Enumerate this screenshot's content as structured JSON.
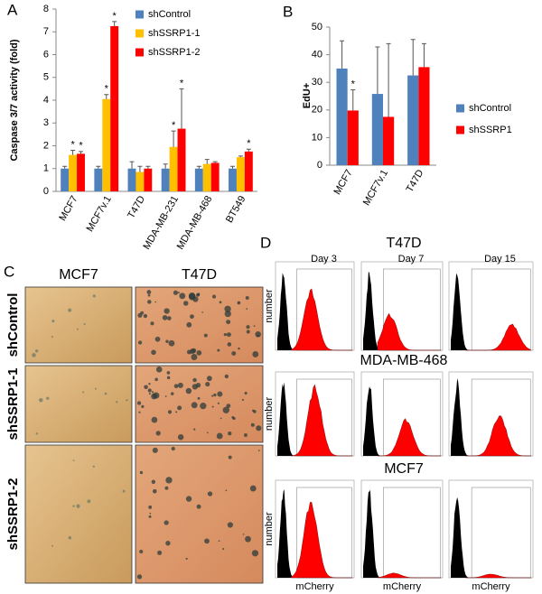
{
  "panel_labels": [
    "A",
    "B",
    "C",
    "D"
  ],
  "chart_data": [
    {
      "type": "bar",
      "ylabel": "Caspase 3/7 activity (fold)",
      "categories": [
        "MCF7",
        "MCF7v.1",
        "T47D",
        "MDA-MB-231",
        "MDA-MB-468",
        "BT549"
      ],
      "series": [
        {
          "name": "shControl",
          "color": "#4f81bd",
          "values": [
            1.0,
            1.0,
            1.0,
            1.0,
            1.0,
            1.0
          ],
          "errors": [
            0.1,
            0.1,
            0.3,
            0.2,
            0.1,
            0.1
          ],
          "annotations": [
            null,
            null,
            null,
            null,
            null,
            null
          ]
        },
        {
          "name": "shSSRP1-1",
          "color": "#ffc000",
          "values": [
            1.6,
            4.05,
            0.85,
            1.95,
            1.2,
            1.5
          ],
          "errors": [
            0.2,
            0.2,
            0.25,
            0.7,
            0.2,
            0.05
          ],
          "annotations": [
            "*",
            "*",
            null,
            "*",
            null,
            null
          ]
        },
        {
          "name": "shSSRP1-2",
          "color": "#ff0000",
          "values": [
            1.65,
            7.25,
            1.0,
            2.75,
            1.25,
            1.75
          ],
          "errors": [
            0.1,
            0.2,
            0.1,
            1.75,
            0.05,
            0.1
          ],
          "annotations": [
            "*",
            "*",
            null,
            "*",
            null,
            "*"
          ]
        }
      ],
      "ylim": [
        0,
        8
      ],
      "yticks": [
        0,
        1,
        2,
        3,
        4,
        5,
        6,
        7,
        8
      ],
      "grid": false
    },
    {
      "type": "bar",
      "ylabel": "EdU+",
      "categories": [
        "MCF7",
        "MCF7v.1",
        "T47D"
      ],
      "series": [
        {
          "name": "shControl",
          "color": "#4f81bd",
          "values": [
            35,
            25.8,
            32.5
          ],
          "errors": [
            10,
            17,
            13
          ],
          "annotations": [
            null,
            null,
            null
          ]
        },
        {
          "name": "shSSRP1",
          "color": "#ff0000",
          "values": [
            19.8,
            17.5,
            35.5
          ],
          "errors": [
            7.5,
            26.5,
            8.5
          ],
          "annotations": [
            "*",
            null,
            null
          ]
        }
      ],
      "ylim": [
        0,
        50
      ],
      "yticks": [
        0,
        10,
        20,
        30,
        40,
        50
      ],
      "grid": false
    }
  ],
  "panel_c": {
    "columns": [
      "MCF7",
      "T47D"
    ],
    "rows": [
      "shControl",
      "shSSRP1-1",
      "shSSRP1-2"
    ]
  },
  "panel_d": {
    "rows": [
      "T47D",
      "MDA-MB-468",
      "MCF7"
    ],
    "days": [
      "Day 3",
      "Day 7",
      "Day 15"
    ],
    "ylabel": "number",
    "xlabel": "mCherry"
  }
}
